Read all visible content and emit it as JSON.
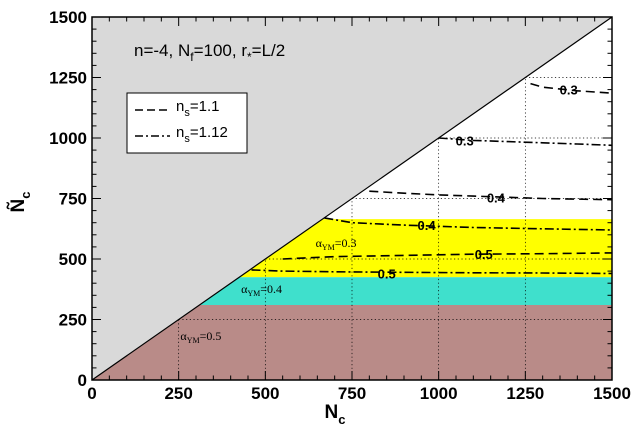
{
  "colors": {
    "forbidden_region": "#d9d9d9",
    "alpha_gt_04": "#b98b88",
    "alpha_03_04": "#3fe0cc",
    "alpha_lt_03": "#ffff00"
  },
  "chart_data": {
    "type": "line",
    "title": "n=-4, N_f=100, r_*=L/2",
    "title_parts": {
      "n": "n=-4, N",
      "f_sub": "f",
      "nf": "=100, r",
      "star_sub": "*",
      "r": "=L/2"
    },
    "xlabel": "N_c",
    "xlabel_parts": {
      "main": "N",
      "sub": "c"
    },
    "ylabel": "Ñ_c",
    "ylabel_parts": {
      "main": "Ñ",
      "sub": "c"
    },
    "xlim": [
      0,
      1500
    ],
    "ylim": [
      0,
      1500
    ],
    "x_ticks": [
      "0",
      "250",
      "500",
      "750",
      "1000",
      "1250",
      "1500"
    ],
    "y_ticks": [
      "0",
      "250",
      "500",
      "750",
      "1000",
      "1250",
      "1500"
    ],
    "grid": "dotted, partial",
    "legend_position": "upper-left",
    "legend": [
      {
        "name": "n_s=1.1",
        "main": "n",
        "sub": "s",
        "rest": "=1.1",
        "style": "dashed"
      },
      {
        "name": "n_s=1.12",
        "main": "n",
        "sub": "s",
        "rest": "=1.12",
        "style": "dash-dot"
      }
    ],
    "diagonal": {
      "x": [
        0,
        1500
      ],
      "y": [
        0,
        1500
      ]
    },
    "regions": [
      {
        "name": "alpha_YM=0.5",
        "label_main": "α",
        "label_sub": "YM",
        "label_rest": "=0.5",
        "y_range": [
          0,
          310
        ],
        "color": "#b98b88"
      },
      {
        "name": "alpha_YM=0.4",
        "label_main": "α",
        "label_sub": "YM",
        "label_rest": "=0.4",
        "y_range": [
          310,
          425
        ],
        "color": "#3fe0cc"
      },
      {
        "name": "alpha_YM=0.3",
        "label_main": "α",
        "label_sub": "YM",
        "label_rest": "=0.3",
        "y_range": [
          425,
          665
        ],
        "color": "#ffff00"
      }
    ],
    "series": [
      {
        "name": "n_s=1.1",
        "style": "dashed",
        "level": "0.5",
        "x": [
          550,
          700,
          900,
          1100,
          1300,
          1500
        ],
        "y": [
          500,
          510,
          515,
          520,
          522,
          525
        ]
      },
      {
        "name": "n_s=1.1",
        "style": "dashed",
        "level": "0.4",
        "x": [
          800,
          900,
          1000,
          1100,
          1200,
          1300,
          1500
        ],
        "y": [
          780,
          772,
          765,
          760,
          755,
          750,
          745
        ]
      },
      {
        "name": "n_s=1.1",
        "style": "dashed",
        "level": "0.3",
        "x": [
          1265,
          1300,
          1400,
          1500
        ],
        "y": [
          1225,
          1210,
          1195,
          1185
        ]
      },
      {
        "name": "n_s=1.12",
        "style": "dash-dot",
        "level": "0.5",
        "x": [
          460,
          550,
          700,
          900,
          1100,
          1300,
          1500
        ],
        "y": [
          455,
          450,
          447,
          445,
          443,
          442,
          440
        ]
      },
      {
        "name": "n_s=1.12",
        "style": "dash-dot",
        "level": "0.4",
        "x": [
          670,
          750,
          900,
          1100,
          1300,
          1500
        ],
        "y": [
          670,
          650,
          640,
          630,
          625,
          620
        ]
      },
      {
        "name": "n_s=1.12",
        "style": "dash-dot",
        "level": "0.3",
        "x": [
          1000,
          1100,
          1200,
          1300,
          1400,
          1500
        ],
        "y": [
          1000,
          990,
          985,
          980,
          975,
          970
        ]
      }
    ],
    "contour_labels": [
      {
        "text": "0.5",
        "x": 1130,
        "y": 520
      },
      {
        "text": "0.5",
        "x": 850,
        "y": 440
      },
      {
        "text": "0.4",
        "x": 965,
        "y": 640
      },
      {
        "text": "0.4",
        "x": 1165,
        "y": 755
      },
      {
        "text": "0.3",
        "x": 1075,
        "y": 990
      },
      {
        "text": "0.3",
        "x": 1375,
        "y": 1200
      }
    ]
  }
}
